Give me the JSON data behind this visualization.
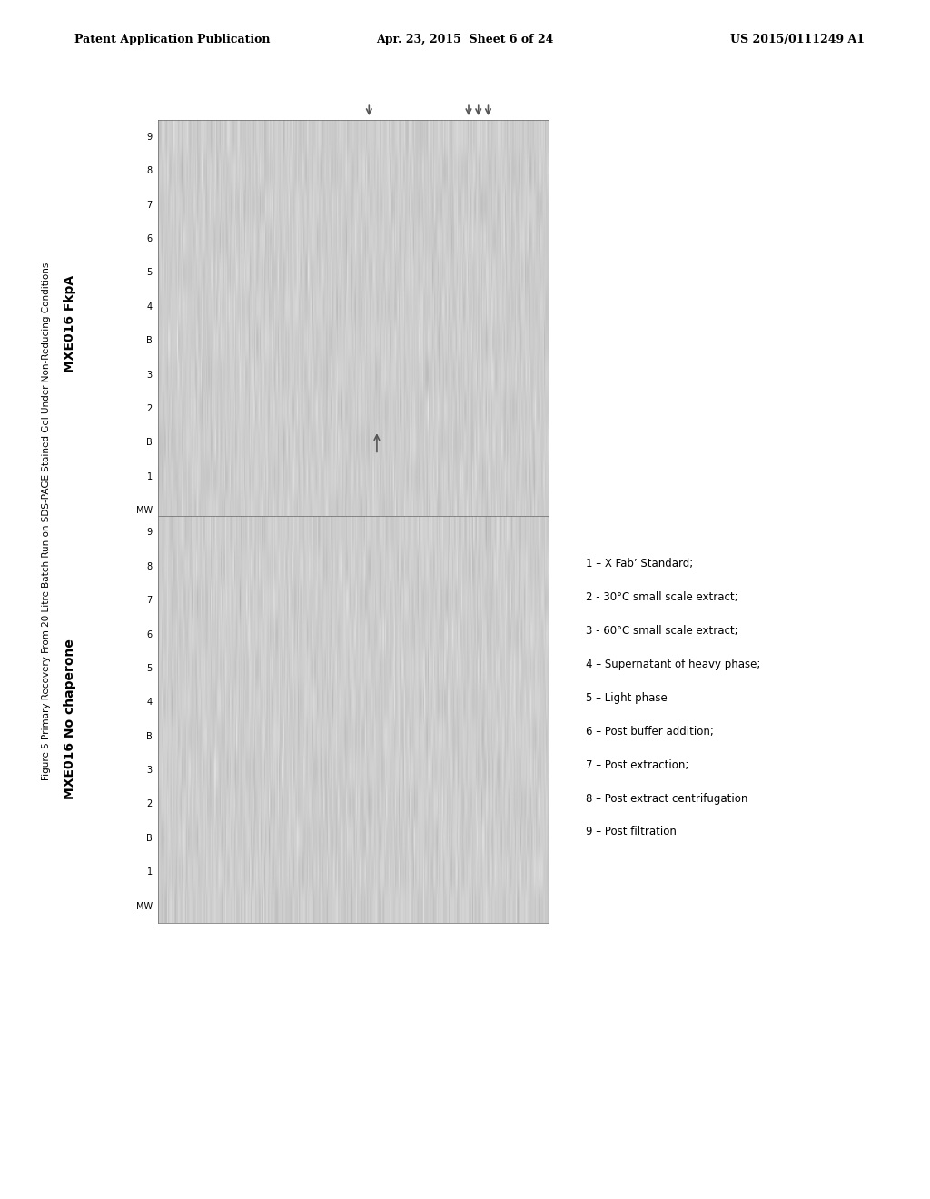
{
  "page_header_left": "Patent Application Publication",
  "page_header_mid": "Apr. 23, 2015  Sheet 6 of 24",
  "page_header_right": "US 2015/0111249 A1",
  "figure_title": "Figure 5 Primary Recovery From 20 Litre Batch Run on SDS-PAGE Stained Gel Under Non-Reducing Conditions",
  "gel1_title": "MXE016 FkpA",
  "gel2_title": "MXE016 No chaperone",
  "lane_labels": [
    "MW",
    "1",
    "B",
    "2",
    "3",
    "B",
    "4",
    "5",
    "6",
    "7",
    "8",
    "9"
  ],
  "legend_odd": [
    "1 – X Fab’ Standard;",
    "3 - 60°C small scale extract;",
    "5 – Light phase",
    "7 – Post extraction;",
    "9 – Post filtration"
  ],
  "legend_even": [
    "2 - 30°C small scale extract;",
    "4 – Supernatant of heavy phase;",
    "6 – Post buffer addition;",
    "8 – Post extract centrifugation"
  ],
  "bg_color": "#ffffff",
  "text_color": "#000000"
}
